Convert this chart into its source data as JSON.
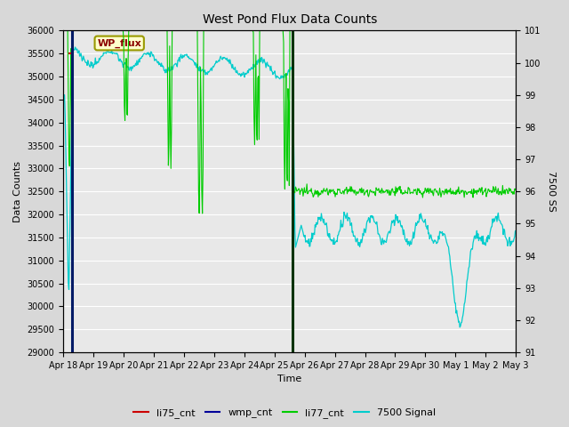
{
  "title": "West Pond Flux Data Counts",
  "xlabel": "Time",
  "ylabel_left": "Data Counts",
  "ylabel_right": "7500 SS",
  "ylim_left": [
    29000,
    36000
  ],
  "ylim_right": [
    91.0,
    101.0
  ],
  "yticks_left": [
    29000,
    29500,
    30000,
    30500,
    31000,
    31500,
    32000,
    32500,
    33000,
    33500,
    34000,
    34500,
    35000,
    35500,
    36000
  ],
  "yticks_right": [
    91.0,
    92.0,
    93.0,
    94.0,
    95.0,
    96.0,
    97.0,
    98.0,
    99.0,
    100.0,
    101.0
  ],
  "bg_color": "#d8d8d8",
  "plot_bg_color": "#e8e8e8",
  "grid_color": "#ffffff",
  "annotation_box": {
    "text": "WP_flux",
    "facecolor": "#ffffcc",
    "edgecolor": "#999900",
    "textcolor": "#8B0000"
  },
  "colors": {
    "li75_cnt": "#cc0000",
    "wmp_cnt": "#000099",
    "li77_cnt": "#00cc00",
    "7500_signal": "#00cccc"
  },
  "vline1_day": 0.3,
  "vline2_day": 7.6,
  "xtick_labels": [
    "Apr 18",
    "Apr 19",
    "Apr 20",
    "Apr 21",
    "Apr 22",
    "Apr 23",
    "Apr 24",
    "Apr 25",
    "Apr 26",
    "Apr 27",
    "Apr 28",
    "Apr 29",
    "Apr 30",
    "May 1",
    "May 2",
    "May 3"
  ]
}
